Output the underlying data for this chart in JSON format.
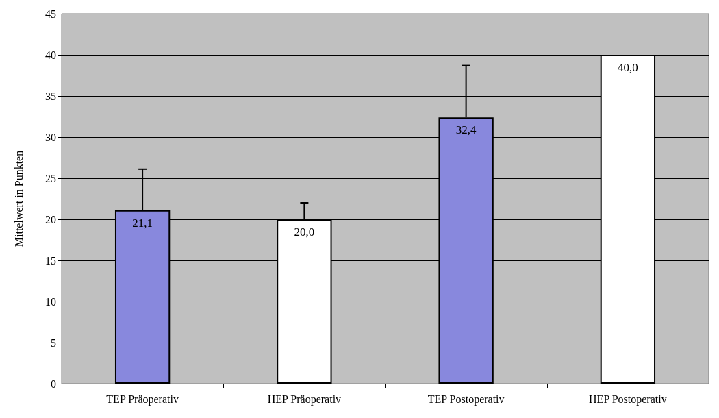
{
  "chart_data": {
    "type": "bar",
    "ylabel": "Mittelwert in Punkten",
    "categories": [
      "TEP Präoperativ",
      "HEP Präoperativ",
      "TEP Postoperativ",
      "HEP Postoperativ"
    ],
    "values": [
      21.1,
      20.0,
      32.4,
      40.0
    ],
    "colors": [
      "#8888dd",
      "#ffffff",
      "#8888dd",
      "#ffffff"
    ],
    "errors": [
      [
        21.1,
        26.1
      ],
      [
        20.0,
        22.0
      ],
      [
        32.4,
        38.7
      ],
      null
    ],
    "value_labels": [
      "21,1",
      "20,0",
      "32,4",
      "40,0"
    ],
    "ylim": [
      0,
      45
    ],
    "yticks": [
      0,
      5,
      10,
      15,
      20,
      25,
      30,
      35,
      40,
      45
    ],
    "grid": "y"
  }
}
